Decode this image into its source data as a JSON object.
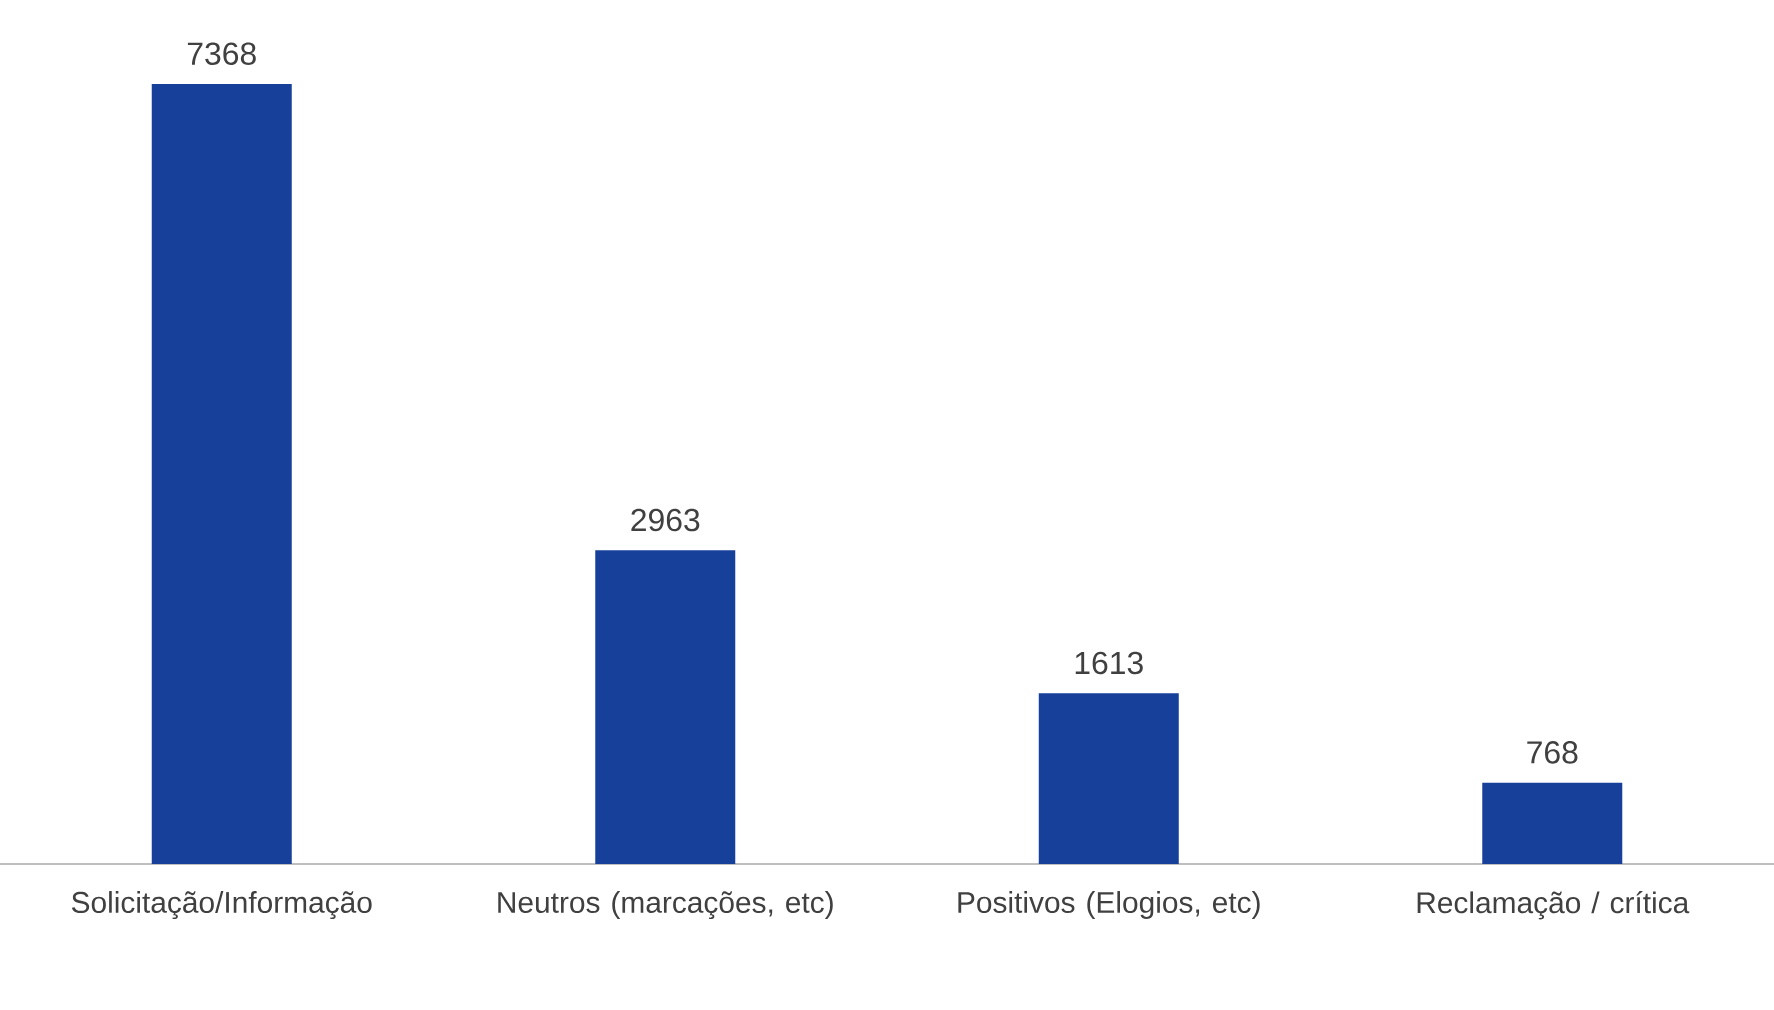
{
  "chart_data": {
    "type": "bar",
    "categories": [
      "Solicitação/Informação",
      "Neutros (marcações, etc)",
      "Positivos (Elogios, etc)",
      "Reclamação / crítica"
    ],
    "values": [
      7368,
      2963,
      1613,
      768
    ],
    "color": "#17409a",
    "data_labels": true
  }
}
